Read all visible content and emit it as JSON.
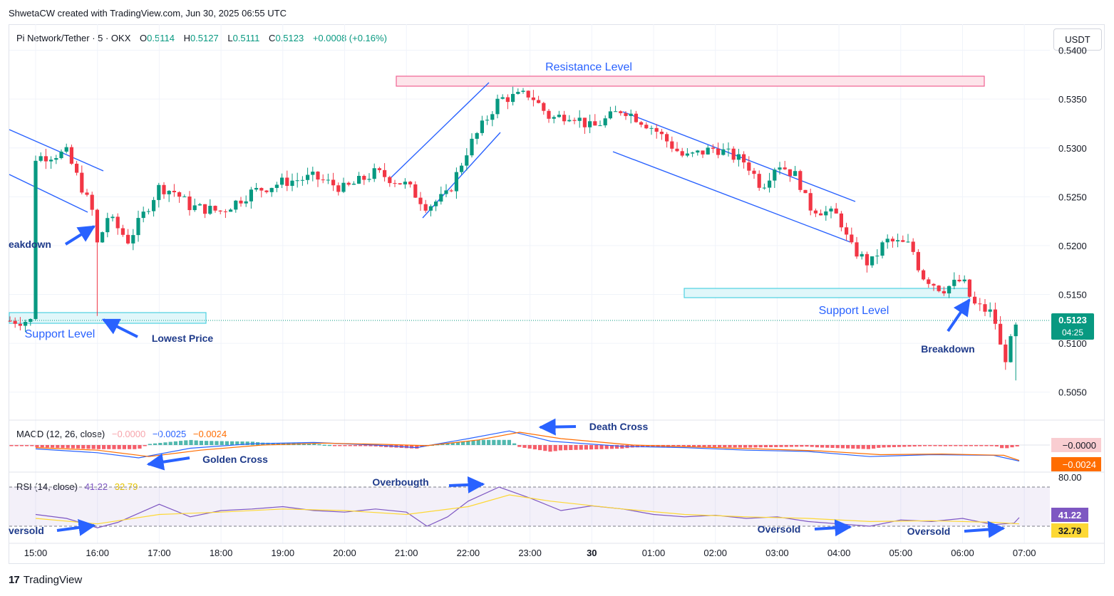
{
  "header": {
    "author_line": "ShwetaCW created with TradingView.com, Jun 30, 2025 06:55 UTC"
  },
  "legend": {
    "symbol": "Pi Network/Tether · 5 · OKX",
    "open_label": "O",
    "open": "0.5114",
    "high_label": "H",
    "high": "0.5127",
    "low_label": "L",
    "low": "0.5111",
    "close_label": "C",
    "close": "0.5123",
    "change": "+0.0008 (+0.16%)"
  },
  "currency_button": "USDT",
  "price_axis": {
    "ticks": [
      "0.5400",
      "0.5350",
      "0.5300",
      "0.5250",
      "0.5200",
      "0.5150",
      "0.5100",
      "0.5050"
    ],
    "last_price": "0.5123",
    "countdown": "04:25"
  },
  "macd": {
    "title": "MACD (12, 26, close)",
    "histogram": "−0.0000",
    "macd": "−0.0025",
    "signal": "−0.0024",
    "axis_hist": "−0.0000",
    "axis_signal": "−0.0024"
  },
  "rsi": {
    "title": "RSI (14, close)",
    "rsi": "41.22",
    "ma": "32.79",
    "axis_80": "80.00"
  },
  "time_axis": [
    "15:00",
    "16:00",
    "17:00",
    "18:00",
    "19:00",
    "20:00",
    "21:00",
    "22:00",
    "23:00",
    "30",
    "01:00",
    "02:00",
    "03:00",
    "04:00",
    "05:00",
    "06:00",
    "07:00"
  ],
  "annotations": {
    "resistance": "Resistance Level",
    "support_left": "Support Level",
    "support_right": "Support Level",
    "breakdown_left": "eakdown",
    "breakdown_right": "Breakdown",
    "lowest_price": "Lowest Price",
    "death_cross": "Death Cross",
    "golden_cross": "Golden Cross",
    "overbought": "Overbougth",
    "oversold_left": "versold",
    "oversold_mid": "Oversold",
    "oversold_right": "Oversold"
  },
  "footer": {
    "brand": "TradingView",
    "logo": "17"
  },
  "colors": {
    "up": "#089981",
    "down": "#f23645",
    "annotation": "#2962ff",
    "macd": "#2962ff",
    "signal": "#ff6d00",
    "rsi": "#7e57c2",
    "rsi_ma": "#fdd835"
  },
  "chart_data": {
    "type": "candlestick",
    "ylim": [
      0.5025,
      0.5415
    ],
    "resistance_zone": [
      0.538,
      0.539
    ],
    "support_zone_left": [
      0.5125,
      0.5137
    ],
    "support_zone_right": [
      0.5148,
      0.5158
    ],
    "anchors": [
      [
        "15:00",
        0.529
      ],
      [
        "15:30",
        0.5295
      ],
      [
        "15:55",
        0.5235
      ],
      [
        "16:00",
        0.52
      ],
      [
        "16:10",
        0.523
      ],
      [
        "16:30",
        0.5205
      ],
      [
        "17:00",
        0.526
      ],
      [
        "17:15",
        0.5255
      ],
      [
        "17:30",
        0.524
      ],
      [
        "18:00",
        0.5235
      ],
      [
        "18:30",
        0.5255
      ],
      [
        "19:00",
        0.5265
      ],
      [
        "19:30",
        0.527
      ],
      [
        "20:00",
        0.5258
      ],
      [
        "20:30",
        0.5275
      ],
      [
        "21:00",
        0.5262
      ],
      [
        "21:20",
        0.524
      ],
      [
        "21:40",
        0.5252
      ],
      [
        "22:00",
        0.53
      ],
      [
        "22:30",
        0.535
      ],
      [
        "23:00",
        0.5355
      ],
      [
        "23:20",
        0.533
      ],
      [
        "23:40",
        0.5335
      ],
      [
        "00:00",
        0.532
      ],
      [
        "00:30",
        0.534
      ],
      [
        "01:00",
        0.532
      ],
      [
        "01:30",
        0.529
      ],
      [
        "02:00",
        0.53
      ],
      [
        "02:30",
        0.5285
      ],
      [
        "02:45",
        0.526
      ],
      [
        "03:00",
        0.5285
      ],
      [
        "03:20",
        0.527
      ],
      [
        "03:30",
        0.524
      ],
      [
        "04:00",
        0.523
      ],
      [
        "04:10",
        0.52
      ],
      [
        "04:30",
        0.518
      ],
      [
        "04:45",
        0.5205
      ],
      [
        "05:10",
        0.52
      ],
      [
        "05:20",
        0.517
      ],
      [
        "05:40",
        0.5155
      ],
      [
        "06:00",
        0.5165
      ],
      [
        "06:10",
        0.514
      ],
      [
        "06:30",
        0.513
      ],
      [
        "06:40",
        0.508
      ],
      [
        "06:50",
        0.5112
      ],
      [
        "06:55",
        0.5123
      ]
    ],
    "low_wick": [
      "16:00",
      0.5128
    ],
    "lowest_late": [
      "06:50",
      0.5062
    ],
    "macd_series": [
      [
        "15:00",
        -0.0006
      ],
      [
        "16:00",
        -0.0012
      ],
      [
        "16:40",
        -0.002
      ],
      [
        "17:30",
        -0.0005
      ],
      [
        "18:30",
        0.0002
      ],
      [
        "19:30",
        0.0004
      ],
      [
        "20:30",
        0.0
      ],
      [
        "21:10",
        -0.0004
      ],
      [
        "22:00",
        0.001
      ],
      [
        "22:40",
        0.0022
      ],
      [
        "23:20",
        0.0006
      ],
      [
        "00:30",
        -0.0002
      ],
      [
        "01:30",
        -0.0004
      ],
      [
        "02:30",
        -0.0008
      ],
      [
        "03:30",
        -0.001
      ],
      [
        "04:30",
        -0.0018
      ],
      [
        "05:30",
        -0.0015
      ],
      [
        "06:30",
        -0.0016
      ],
      [
        "06:55",
        -0.0025
      ]
    ],
    "signal_series": [
      [
        "15:00",
        -0.0004
      ],
      [
        "16:00",
        -0.0008
      ],
      [
        "16:50",
        -0.0018
      ],
      [
        "17:40",
        -0.0008
      ],
      [
        "18:40",
        0.0
      ],
      [
        "19:40",
        0.0003
      ],
      [
        "20:40",
        0.0001
      ],
      [
        "21:20",
        -0.0001
      ],
      [
        "22:10",
        0.0008
      ],
      [
        "22:50",
        0.002
      ],
      [
        "23:30",
        0.001
      ],
      [
        "00:40",
        0.0
      ],
      [
        "01:40",
        -0.0003
      ],
      [
        "02:40",
        -0.0006
      ],
      [
        "03:40",
        -0.0009
      ],
      [
        "04:40",
        -0.0015
      ],
      [
        "05:40",
        -0.0014
      ],
      [
        "06:40",
        -0.0016
      ],
      [
        "06:55",
        -0.0024
      ]
    ],
    "rsi_series": [
      [
        "15:00",
        45
      ],
      [
        "15:30",
        40
      ],
      [
        "16:00",
        28
      ],
      [
        "16:20",
        35
      ],
      [
        "17:00",
        58
      ],
      [
        "17:30",
        42
      ],
      [
        "18:00",
        50
      ],
      [
        "18:30",
        52
      ],
      [
        "19:00",
        55
      ],
      [
        "19:30",
        50
      ],
      [
        "20:00",
        48
      ],
      [
        "20:30",
        52
      ],
      [
        "21:00",
        48
      ],
      [
        "21:20",
        30
      ],
      [
        "21:40",
        42
      ],
      [
        "22:00",
        62
      ],
      [
        "22:30",
        80
      ],
      [
        "23:00",
        66
      ],
      [
        "23:30",
        50
      ],
      [
        "00:00",
        56
      ],
      [
        "00:30",
        52
      ],
      [
        "01:00",
        45
      ],
      [
        "01:30",
        42
      ],
      [
        "02:00",
        44
      ],
      [
        "02:30",
        40
      ],
      [
        "03:00",
        42
      ],
      [
        "03:30",
        36
      ],
      [
        "04:00",
        33
      ],
      [
        "04:30",
        30
      ],
      [
        "05:00",
        38
      ],
      [
        "05:30",
        36
      ],
      [
        "06:00",
        40
      ],
      [
        "06:30",
        32
      ],
      [
        "06:50",
        34
      ],
      [
        "06:55",
        41
      ]
    ],
    "rsi_ma_series": [
      [
        "15:00",
        40
      ],
      [
        "16:00",
        33
      ],
      [
        "17:00",
        45
      ],
      [
        "18:00",
        48
      ],
      [
        "19:00",
        52
      ],
      [
        "20:00",
        50
      ],
      [
        "21:00",
        45
      ],
      [
        "22:00",
        55
      ],
      [
        "22:40",
        70
      ],
      [
        "23:20",
        62
      ],
      [
        "00:30",
        52
      ],
      [
        "01:30",
        45
      ],
      [
        "02:30",
        42
      ],
      [
        "03:30",
        40
      ],
      [
        "04:30",
        36
      ],
      [
        "05:30",
        37
      ],
      [
        "06:30",
        35
      ],
      [
        "06:55",
        33
      ]
    ]
  }
}
